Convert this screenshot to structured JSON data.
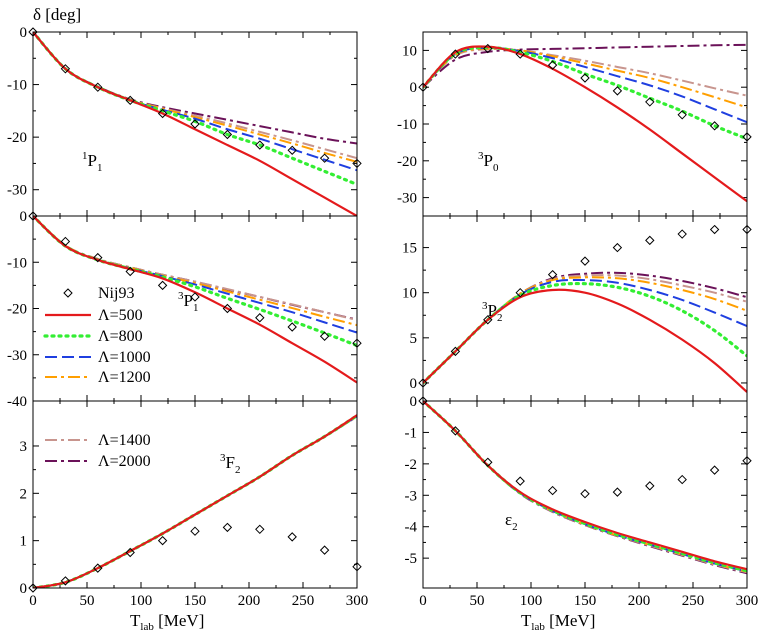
{
  "figure": {
    "ylabel": "δ [deg]",
    "xlabel_main": "T",
    "xlabel_sub": "lab",
    "xlabel_unit": " [MeV]",
    "xticks": [
      "0",
      "50",
      "100",
      "150",
      "200",
      "250",
      "300"
    ]
  },
  "legend": {
    "items": [
      {
        "key": "nij93",
        "label": "Nij93",
        "color": "#000000",
        "style": "diamond"
      },
      {
        "key": "L500",
        "label": "Λ=500",
        "color": "#e41a1c",
        "style": "solid"
      },
      {
        "key": "L800",
        "label": "Λ=800",
        "color": "#33ee33",
        "style": "dot"
      },
      {
        "key": "L1000",
        "label": "Λ=1000",
        "color": "#1f3fe0",
        "style": "dash"
      },
      {
        "key": "L1200",
        "label": "Λ=1200",
        "color": "#ff9f00",
        "style": "dashdot"
      },
      {
        "key": "L1400",
        "label": "Λ=1400",
        "color": "#c8958e",
        "style": "dashdot"
      },
      {
        "key": "L2000",
        "label": "Λ=2000",
        "color": "#6b1259",
        "style": "dashdot"
      }
    ]
  },
  "chart_data": [
    {
      "type": "line",
      "panel": "1P1",
      "label_main": "1",
      "label_letter": "P",
      "label_sub": "1",
      "xlim": [
        0,
        300
      ],
      "ylim": [
        -35,
        0
      ],
      "yticks": [
        0,
        -10,
        -20,
        -30
      ],
      "ytick_labels": [
        "0",
        "-10",
        "-20",
        "-30"
      ],
      "x": [
        0,
        30,
        60,
        90,
        120,
        150,
        180,
        210,
        240,
        270,
        300
      ],
      "series": [
        {
          "name": "Λ=500",
          "key": "L500",
          "values": [
            0,
            -7,
            -10.5,
            -13,
            -15.5,
            -18.5,
            -21.5,
            -24.5,
            -28,
            -31.5,
            -35
          ]
        },
        {
          "name": "Λ=800",
          "key": "L800",
          "values": [
            0,
            -7,
            -10.5,
            -13,
            -15,
            -17,
            -19.5,
            -21.5,
            -24,
            -26.5,
            -29
          ]
        },
        {
          "name": "Λ=1000",
          "key": "L1000",
          "values": [
            0,
            -7,
            -10.5,
            -13,
            -14.8,
            -16.5,
            -18.5,
            -20.3,
            -22.3,
            -24.3,
            -26.3
          ]
        },
        {
          "name": "Λ=1200",
          "key": "L1200",
          "values": [
            0,
            -7,
            -10.5,
            -12.9,
            -14.6,
            -16.2,
            -17.8,
            -19.5,
            -21.2,
            -23,
            -24.7
          ]
        },
        {
          "name": "Λ=1400",
          "key": "L1400",
          "values": [
            0,
            -7,
            -10.5,
            -12.9,
            -14.5,
            -15.9,
            -17.4,
            -19,
            -20.6,
            -22.3,
            -24
          ]
        },
        {
          "name": "Λ=2000",
          "key": "L2000",
          "values": [
            0,
            -7,
            -10.4,
            -12.8,
            -14.3,
            -15.5,
            -16.7,
            -17.9,
            -19.1,
            -20.3,
            -21.2
          ]
        }
      ],
      "points": {
        "name": "Nij93",
        "x": [
          0,
          30,
          60,
          90,
          120,
          150,
          180,
          210,
          240,
          270,
          300
        ],
        "y": [
          0,
          -7,
          -10.5,
          -13,
          -15.5,
          -17.5,
          -19.5,
          -21.5,
          -22.5,
          -24,
          -25
        ]
      }
    },
    {
      "type": "line",
      "panel": "3P0",
      "label_main": "3",
      "label_letter": "P",
      "label_sub": "0",
      "xlim": [
        0,
        300
      ],
      "ylim": [
        -35,
        15
      ],
      "yticks": [
        10,
        0,
        -10,
        -20,
        -30
      ],
      "ytick_labels": [
        "10",
        "0",
        "-10",
        "-20",
        "-30"
      ],
      "x": [
        0,
        30,
        60,
        90,
        120,
        150,
        180,
        210,
        240,
        270,
        300
      ],
      "series": [
        {
          "name": "Λ=500",
          "key": "L500",
          "values": [
            0,
            9.5,
            11,
            9,
            5,
            0,
            -5.5,
            -11.5,
            -18,
            -24.5,
            -31
          ]
        },
        {
          "name": "Λ=800",
          "key": "L800",
          "values": [
            0,
            9.2,
            10.8,
            9.5,
            7,
            3.6,
            0.5,
            -3,
            -6.5,
            -10.5,
            -14
          ]
        },
        {
          "name": "Λ=1000",
          "key": "L1000",
          "values": [
            0,
            9,
            10.7,
            9.8,
            7.9,
            5.5,
            3,
            0.5,
            -2.5,
            -6,
            -9.5
          ]
        },
        {
          "name": "Λ=1200",
          "key": "L1200",
          "values": [
            0,
            8.8,
            10.5,
            10,
            8.4,
            6.5,
            4.5,
            2.5,
            0,
            -2.7,
            -5.5
          ]
        },
        {
          "name": "Λ=1400",
          "key": "L1400",
          "values": [
            0,
            8.6,
            10.3,
            10,
            8.7,
            7.2,
            5.5,
            3.8,
            1.8,
            -0.3,
            -2.3
          ]
        },
        {
          "name": "Λ=2000",
          "key": "L2000",
          "values": [
            0,
            7.5,
            9.6,
            10.2,
            10.4,
            10.6,
            10.8,
            11,
            11.2,
            11.4,
            11.5
          ]
        }
      ],
      "points": {
        "name": "Nij93",
        "x": [
          0,
          30,
          60,
          90,
          120,
          150,
          180,
          210,
          240,
          270,
          300
        ],
        "y": [
          0,
          9,
          10.5,
          9,
          6,
          2.5,
          -1,
          -4,
          -7.5,
          -10.5,
          -13.5
        ]
      }
    },
    {
      "type": "line",
      "panel": "3P1",
      "label_main": "3",
      "label_letter": "P",
      "label_sub": "1",
      "xlim": [
        0,
        300
      ],
      "ylim": [
        -40,
        0
      ],
      "yticks": [
        0,
        -10,
        -20,
        -30,
        -40
      ],
      "ytick_labels": [
        "0",
        "-10",
        "-20",
        "-30",
        "-40"
      ],
      "x": [
        0,
        30,
        60,
        90,
        120,
        150,
        180,
        210,
        240,
        270,
        300
      ],
      "series": [
        {
          "name": "Λ=500",
          "key": "L500",
          "values": [
            0,
            -6.5,
            -9.5,
            -11.5,
            -13.5,
            -16.5,
            -20,
            -23.5,
            -27.5,
            -31.5,
            -36
          ]
        },
        {
          "name": "Λ=800",
          "key": "L800",
          "values": [
            0,
            -6.5,
            -9.5,
            -11.4,
            -13.2,
            -15.3,
            -17.8,
            -20.2,
            -22.7,
            -25.3,
            -28
          ]
        },
        {
          "name": "Λ=1000",
          "key": "L1000",
          "values": [
            0,
            -6.5,
            -9.5,
            -11.3,
            -13,
            -14.8,
            -16.8,
            -18.8,
            -20.8,
            -23,
            -25.2
          ]
        },
        {
          "name": "Λ=1200",
          "key": "L1200",
          "values": [
            0,
            -6.4,
            -9.4,
            -11.2,
            -12.9,
            -14.5,
            -16.3,
            -18.1,
            -19.9,
            -21.8,
            -23.6
          ]
        },
        {
          "name": "Λ=1400",
          "key": "L1400",
          "values": [
            0,
            -6.4,
            -9.3,
            -11.1,
            -12.7,
            -14.2,
            -15.8,
            -17.5,
            -19.1,
            -20.8,
            -22.5
          ]
        },
        {
          "name": "Λ=2000",
          "key": "L2000",
          "values": [
            0,
            -6.4,
            -9.3,
            -11.1,
            -12.7,
            -14.2,
            -15.9,
            -17.5,
            -19.2,
            -20.8,
            -22.4
          ]
        }
      ],
      "points": {
        "name": "Nij93",
        "x": [
          0,
          30,
          60,
          90,
          120,
          150,
          180,
          210,
          240,
          270,
          300
        ],
        "y": [
          0,
          -5.5,
          -9,
          -12,
          -15,
          -17.5,
          -20,
          -22,
          -24,
          -26,
          -27.5
        ]
      }
    },
    {
      "type": "line",
      "panel": "3P2",
      "label_main": "3",
      "label_letter": "P",
      "label_sub": "2",
      "xlim": [
        0,
        300
      ],
      "ylim": [
        -2,
        18.5
      ],
      "yticks": [
        15,
        10,
        5,
        0
      ],
      "ytick_labels": [
        "15",
        "10",
        "5",
        "0"
      ],
      "x": [
        0,
        30,
        60,
        90,
        120,
        150,
        180,
        210,
        240,
        270,
        300
      ],
      "series": [
        {
          "name": "Λ=500",
          "key": "L500",
          "values": [
            0,
            3.5,
            7,
            9.5,
            10.3,
            10,
            8.8,
            7,
            4.8,
            2.2,
            -1
          ]
        },
        {
          "name": "Λ=800",
          "key": "L800",
          "values": [
            0,
            3.5,
            7,
            9.7,
            10.8,
            11,
            10.6,
            9.6,
            8,
            5.8,
            3
          ]
        },
        {
          "name": "Λ=1000",
          "key": "L1000",
          "values": [
            0,
            3.5,
            7,
            9.8,
            11.2,
            11.4,
            11.1,
            10.3,
            9.2,
            7.8,
            6.3
          ]
        },
        {
          "name": "Λ=1200",
          "key": "L1200",
          "values": [
            0,
            3.5,
            7,
            9.9,
            11.4,
            11.7,
            11.6,
            11.1,
            10.3,
            9.3,
            8
          ]
        },
        {
          "name": "Λ=1400",
          "key": "L1400",
          "values": [
            0,
            3.5,
            7,
            9.9,
            11.5,
            11.9,
            11.9,
            11.5,
            10.8,
            10,
            9
          ]
        },
        {
          "name": "Λ=2000",
          "key": "L2000",
          "values": [
            0,
            3.5,
            7,
            9.9,
            11.6,
            12.1,
            12.2,
            11.9,
            11.3,
            10.5,
            9.5
          ]
        }
      ],
      "points": {
        "name": "Nij93",
        "x": [
          0,
          30,
          60,
          90,
          120,
          150,
          180,
          210,
          240,
          270,
          300
        ],
        "y": [
          0,
          3.5,
          7,
          10,
          12,
          13.5,
          15,
          15.8,
          16.5,
          17,
          17
        ]
      }
    },
    {
      "type": "line",
      "panel": "3F2",
      "label_main": "3",
      "label_letter": "F",
      "label_sub": "2",
      "xlim": [
        0,
        300
      ],
      "ylim": [
        0,
        3.95
      ],
      "yticks": [
        0,
        1,
        2,
        3
      ],
      "ytick_labels": [
        "0",
        "1",
        "2",
        "3"
      ],
      "x": [
        0,
        30,
        60,
        90,
        120,
        150,
        180,
        210,
        240,
        270,
        300
      ],
      "series": [
        {
          "name": "Λ=500",
          "key": "L500",
          "values": [
            0,
            0.12,
            0.42,
            0.78,
            1.15,
            1.55,
            1.95,
            2.35,
            2.8,
            3.2,
            3.65
          ]
        },
        {
          "name": "Λ=800",
          "key": "L800",
          "values": [
            0,
            0.12,
            0.42,
            0.78,
            1.15,
            1.55,
            1.95,
            2.35,
            2.8,
            3.2,
            3.64
          ]
        },
        {
          "name": "Λ=1000",
          "key": "L1000",
          "values": [
            0,
            0.12,
            0.42,
            0.78,
            1.15,
            1.55,
            1.95,
            2.35,
            2.8,
            3.2,
            3.63
          ]
        },
        {
          "name": "Λ=1200",
          "key": "L1200",
          "values": [
            0,
            0.12,
            0.42,
            0.78,
            1.15,
            1.55,
            1.95,
            2.35,
            2.8,
            3.2,
            3.63
          ]
        },
        {
          "name": "Λ=1400",
          "key": "L1400",
          "values": [
            0,
            0.12,
            0.42,
            0.78,
            1.15,
            1.55,
            1.95,
            2.35,
            2.8,
            3.2,
            3.62
          ]
        },
        {
          "name": "Λ=2000",
          "key": "L2000",
          "values": [
            0,
            0.12,
            0.42,
            0.78,
            1.15,
            1.55,
            1.95,
            2.35,
            2.8,
            3.2,
            3.62
          ]
        }
      ],
      "points": {
        "name": "Nij93",
        "x": [
          0,
          30,
          60,
          90,
          120,
          150,
          180,
          210,
          240,
          270,
          300
        ],
        "y": [
          0,
          0.15,
          0.42,
          0.75,
          1,
          1.2,
          1.28,
          1.24,
          1.08,
          0.8,
          0.45
        ]
      }
    },
    {
      "type": "line",
      "panel": "eps2",
      "label_main": "",
      "label_letter": "ε",
      "label_sub": "2",
      "xlim": [
        0,
        300
      ],
      "ylim": [
        -5.95,
        0
      ],
      "yticks": [
        0,
        -1,
        -2,
        -3,
        -4,
        -5
      ],
      "ytick_labels": [
        "0",
        "-1",
        "-2",
        "-3",
        "-4",
        "-5"
      ],
      "x": [
        0,
        30,
        60,
        90,
        120,
        150,
        180,
        210,
        240,
        270,
        300
      ],
      "series": [
        {
          "name": "Λ=500",
          "key": "L500",
          "values": [
            0,
            -0.95,
            -2.05,
            -2.9,
            -3.45,
            -3.85,
            -4.2,
            -4.5,
            -4.8,
            -5.1,
            -5.35
          ]
        },
        {
          "name": "Λ=800",
          "key": "L800",
          "values": [
            0,
            -0.95,
            -2.05,
            -2.92,
            -3.48,
            -3.9,
            -4.25,
            -4.55,
            -4.85,
            -5.15,
            -5.4
          ]
        },
        {
          "name": "Λ=1000",
          "key": "L1000",
          "values": [
            0,
            -0.95,
            -2.05,
            -2.93,
            -3.5,
            -3.92,
            -4.27,
            -4.57,
            -4.87,
            -5.17,
            -5.42
          ]
        },
        {
          "name": "Λ=1200",
          "key": "L1200",
          "values": [
            0,
            -0.95,
            -2.05,
            -2.93,
            -3.5,
            -3.93,
            -4.28,
            -4.58,
            -4.88,
            -5.18,
            -5.43
          ]
        },
        {
          "name": "Λ=1400",
          "key": "L1400",
          "values": [
            0,
            -0.95,
            -2.05,
            -2.94,
            -3.52,
            -3.94,
            -4.29,
            -4.6,
            -4.9,
            -5.2,
            -5.45
          ]
        },
        {
          "name": "Λ=2000",
          "key": "L2000",
          "values": [
            0,
            -0.95,
            -2.05,
            -2.95,
            -3.53,
            -3.95,
            -4.3,
            -4.62,
            -4.92,
            -5.22,
            -5.48
          ]
        }
      ],
      "points": {
        "name": "Nij93",
        "x": [
          0,
          30,
          60,
          90,
          120,
          150,
          180,
          210,
          240,
          270,
          300
        ],
        "y": [
          0,
          -0.95,
          -1.95,
          -2.55,
          -2.85,
          -2.95,
          -2.9,
          -2.7,
          -2.5,
          -2.2,
          -1.9
        ]
      }
    }
  ]
}
